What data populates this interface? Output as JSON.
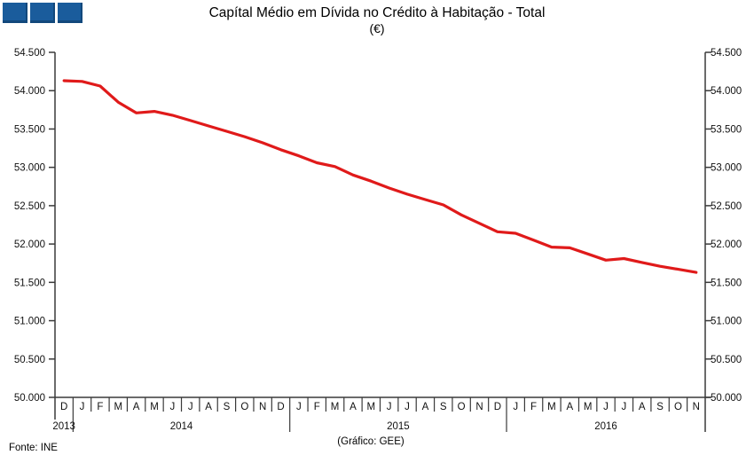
{
  "header": {
    "logo": {
      "icon": "three-blue-squares",
      "color": "#1a5c9c",
      "count": 3
    },
    "title": "Capítal Médio em Dívida no Crédito à Habitação - Total",
    "subtitle": "(€)"
  },
  "footer": {
    "source": "Fonte: INE",
    "credit": "(Gráfico: GEE)"
  },
  "chart_data": {
    "type": "line",
    "title": "Capítal Médio em Dívida no Crédito à Habitação - Total",
    "subtitle": "(€)",
    "grid": false,
    "legend": null,
    "line_color": "#e01a1a",
    "axis_color": "#3a3a3a",
    "ylim": [
      50000,
      54500
    ],
    "ytick_step": 500,
    "ytick_labels": [
      "54.500",
      "54.000",
      "53.500",
      "53.000",
      "52.500",
      "52.000",
      "51.500",
      "51.000",
      "50.500",
      "50.000"
    ],
    "months": [
      "D",
      "J",
      "F",
      "M",
      "A",
      "M",
      "J",
      "J",
      "A",
      "S",
      "O",
      "N",
      "D",
      "J",
      "F",
      "M",
      "A",
      "M",
      "J",
      "J",
      "A",
      "S",
      "O",
      "N",
      "D",
      "J",
      "F",
      "M",
      "A",
      "M",
      "J",
      "J",
      "A",
      "S",
      "O",
      "N"
    ],
    "years": [
      {
        "label": "2013",
        "start": 0,
        "count": 1
      },
      {
        "label": "2014",
        "start": 1,
        "count": 12
      },
      {
        "label": "2015",
        "start": 13,
        "count": 12
      },
      {
        "label": "2016",
        "start": 25,
        "count": 11
      }
    ],
    "values": [
      54130,
      54120,
      54060,
      53850,
      53710,
      53730,
      53680,
      53610,
      53540,
      53470,
      53400,
      53320,
      53230,
      53150,
      53060,
      53010,
      52900,
      52820,
      52730,
      52650,
      52580,
      52510,
      52380,
      52270,
      52160,
      52140,
      52050,
      51960,
      51950,
      51870,
      51790,
      51810,
      51760,
      51710,
      51670,
      51630
    ]
  }
}
